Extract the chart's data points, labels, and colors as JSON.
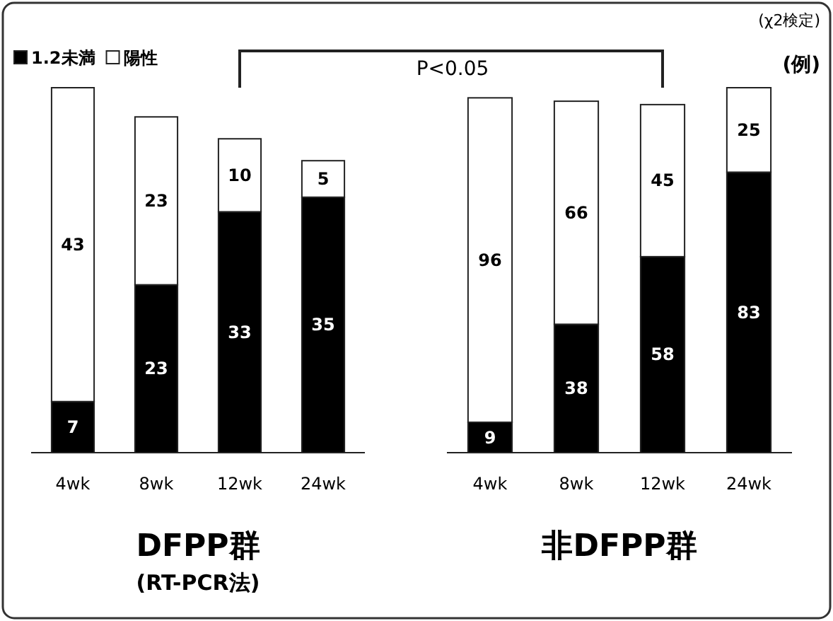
{
  "chart_data": [
    {
      "type": "bar",
      "stacked": true,
      "data_labels": true,
      "legend": "top left",
      "xlabel": "DFPP群",
      "annotations": [
        "(RT-PCR法)"
      ],
      "categories": [
        "4wk",
        "8wk",
        "12wk",
        "24wk"
      ],
      "series": [
        {
          "name": "1.2未満",
          "color": "#000000",
          "values": [
            7,
            23,
            33,
            35
          ]
        },
        {
          "name": "陽性",
          "color": "#ffffff",
          "values": [
            43,
            23,
            10,
            5
          ]
        }
      ]
    },
    {
      "type": "bar",
      "stacked": true,
      "data_labels": true,
      "xlabel": "非DFPP群",
      "annotations": [
        "P<0.05",
        "(χ2検定)",
        "(例)"
      ],
      "categories": [
        "4wk",
        "8wk",
        "12wk",
        "24wk"
      ],
      "series": [
        {
          "color": "#000000",
          "values": [
            9,
            38,
            58,
            83
          ]
        },
        {
          "color": "#ffffff",
          "values": [
            96,
            66,
            45,
            25
          ]
        }
      ]
    }
  ]
}
